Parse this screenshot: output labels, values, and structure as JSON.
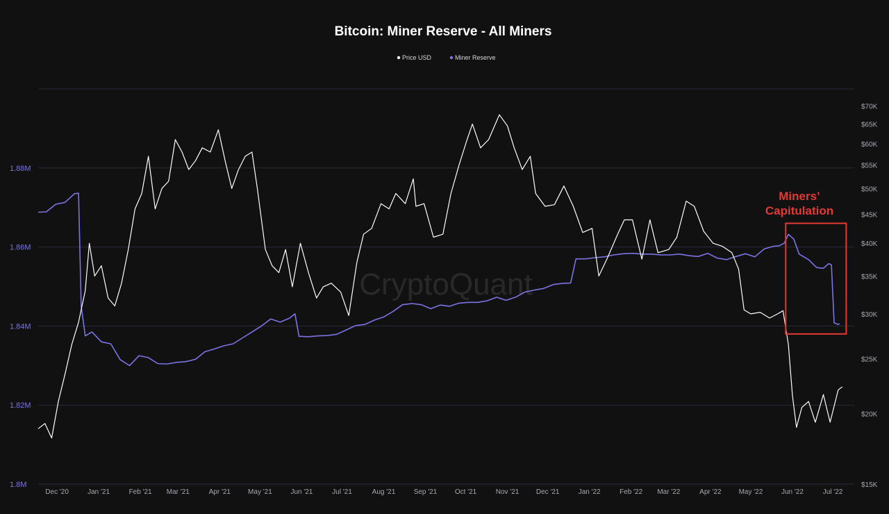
{
  "chart_data": {
    "type": "line",
    "title": "Bitcoin: Miner Reserve - All Miners",
    "watermark": "CryptoQuant",
    "legend": {
      "placement": "top-center",
      "items": [
        {
          "label": "Price USD",
          "color": "#ffffff"
        },
        {
          "label": "Miner Reserve",
          "color": "#7c74e6"
        }
      ]
    },
    "grid": true,
    "x_axis": {
      "type": "date",
      "range": [
        "2020-12-01",
        "2022-07-31"
      ],
      "ticks": [
        {
          "label": "Dec '20",
          "date": "2020-12-15"
        },
        {
          "label": "Jan '21",
          "date": "2021-01-15"
        },
        {
          "label": "Feb '21",
          "date": "2021-02-15"
        },
        {
          "label": "Mar '21",
          "date": "2021-03-15"
        },
        {
          "label": "Apr '21",
          "date": "2021-04-15"
        },
        {
          "label": "May '21",
          "date": "2021-05-15"
        },
        {
          "label": "Jun '21",
          "date": "2021-06-15"
        },
        {
          "label": "Jul '21",
          "date": "2021-07-15"
        },
        {
          "label": "Aug '21",
          "date": "2021-08-15"
        },
        {
          "label": "Sep '21",
          "date": "2021-09-15"
        },
        {
          "label": "Oct '21",
          "date": "2021-10-15"
        },
        {
          "label": "Nov '21",
          "date": "2021-11-15"
        },
        {
          "label": "Dec '21",
          "date": "2021-12-15"
        },
        {
          "label": "Jan '22",
          "date": "2022-01-15"
        },
        {
          "label": "Feb '22",
          "date": "2022-02-15"
        },
        {
          "label": "Mar '22",
          "date": "2022-03-15"
        },
        {
          "label": "Apr '22",
          "date": "2022-04-15"
        },
        {
          "label": "May '22",
          "date": "2022-05-15"
        },
        {
          "label": "Jun '22",
          "date": "2022-06-15"
        },
        {
          "label": "Jul '22",
          "date": "2022-07-15"
        }
      ]
    },
    "y_left": {
      "series": "Miner Reserve",
      "range": [
        1800000,
        1900000
      ],
      "ticks": [
        {
          "value": 1800000,
          "label": "1.8M"
        },
        {
          "value": 1820000,
          "label": "1.82M"
        },
        {
          "value": 1840000,
          "label": "1.84M"
        },
        {
          "value": 1860000,
          "label": "1.86M"
        },
        {
          "value": 1880000,
          "label": "1.88M"
        }
      ]
    },
    "y_right": {
      "series": "Price USD",
      "scale": "log",
      "range": [
        15000,
        75000
      ],
      "ticks": [
        {
          "value": 15000,
          "label": "$15K"
        },
        {
          "value": 20000,
          "label": "$20K"
        },
        {
          "value": 25000,
          "label": "$25K"
        },
        {
          "value": 30000,
          "label": "$30K"
        },
        {
          "value": 35000,
          "label": "$35K"
        },
        {
          "value": 40000,
          "label": "$40K"
        },
        {
          "value": 45000,
          "label": "$45K"
        },
        {
          "value": 50000,
          "label": "$50K"
        },
        {
          "value": 55000,
          "label": "$55K"
        },
        {
          "value": 60000,
          "label": "$60K"
        },
        {
          "value": 65000,
          "label": "$65K"
        },
        {
          "value": 70000,
          "label": "$70K"
        }
      ]
    },
    "series": [
      {
        "name": "Price USD",
        "color": "#ffffff",
        "axis": "right",
        "points": [
          [
            "2020-12-01",
            18800
          ],
          [
            "2020-12-06",
            19200
          ],
          [
            "2020-12-11",
            18100
          ],
          [
            "2020-12-16",
            21000
          ],
          [
            "2020-12-21",
            23500
          ],
          [
            "2020-12-26",
            26500
          ],
          [
            "2020-12-31",
            29000
          ],
          [
            "2021-01-05",
            33000
          ],
          [
            "2021-01-08",
            40000
          ],
          [
            "2021-01-12",
            35000
          ],
          [
            "2021-01-17",
            36500
          ],
          [
            "2021-01-22",
            32000
          ],
          [
            "2021-01-27",
            31000
          ],
          [
            "2021-02-01",
            34000
          ],
          [
            "2021-02-06",
            39000
          ],
          [
            "2021-02-11",
            46000
          ],
          [
            "2021-02-16",
            49000
          ],
          [
            "2021-02-21",
            57000
          ],
          [
            "2021-02-26",
            46000
          ],
          [
            "2021-03-03",
            50000
          ],
          [
            "2021-03-08",
            51500
          ],
          [
            "2021-03-13",
            61000
          ],
          [
            "2021-03-18",
            58000
          ],
          [
            "2021-03-23",
            54000
          ],
          [
            "2021-03-28",
            56000
          ],
          [
            "2021-04-02",
            59000
          ],
          [
            "2021-04-08",
            58000
          ],
          [
            "2021-04-14",
            63500
          ],
          [
            "2021-04-19",
            56000
          ],
          [
            "2021-04-24",
            50000
          ],
          [
            "2021-04-29",
            54000
          ],
          [
            "2021-05-04",
            57000
          ],
          [
            "2021-05-09",
            58000
          ],
          [
            "2021-05-13",
            50000
          ],
          [
            "2021-05-19",
            39000
          ],
          [
            "2021-05-24",
            36500
          ],
          [
            "2021-05-29",
            35500
          ],
          [
            "2021-06-03",
            39000
          ],
          [
            "2021-06-08",
            33500
          ],
          [
            "2021-06-14",
            40000
          ],
          [
            "2021-06-20",
            35500
          ],
          [
            "2021-06-26",
            32000
          ],
          [
            "2021-07-01",
            33500
          ],
          [
            "2021-07-07",
            34000
          ],
          [
            "2021-07-14",
            32800
          ],
          [
            "2021-07-20",
            29800
          ],
          [
            "2021-07-26",
            37000
          ],
          [
            "2021-07-31",
            41500
          ],
          [
            "2021-08-06",
            42500
          ],
          [
            "2021-08-13",
            47000
          ],
          [
            "2021-08-19",
            46000
          ],
          [
            "2021-08-24",
            49000
          ],
          [
            "2021-08-31",
            47000
          ],
          [
            "2021-09-06",
            52000
          ],
          [
            "2021-09-08",
            46500
          ],
          [
            "2021-09-14",
            47000
          ],
          [
            "2021-09-21",
            41000
          ],
          [
            "2021-09-28",
            41500
          ],
          [
            "2021-10-04",
            49000
          ],
          [
            "2021-10-10",
            55000
          ],
          [
            "2021-10-16",
            61000
          ],
          [
            "2021-10-20",
            65000
          ],
          [
            "2021-10-26",
            59000
          ],
          [
            "2021-11-01",
            61000
          ],
          [
            "2021-11-09",
            67500
          ],
          [
            "2021-11-15",
            64500
          ],
          [
            "2021-11-20",
            59000
          ],
          [
            "2021-11-26",
            54000
          ],
          [
            "2021-12-02",
            57000
          ],
          [
            "2021-12-06",
            49000
          ],
          [
            "2021-12-13",
            46500
          ],
          [
            "2021-12-20",
            46800
          ],
          [
            "2021-12-27",
            50500
          ],
          [
            "2022-01-03",
            46500
          ],
          [
            "2022-01-10",
            41800
          ],
          [
            "2022-01-17",
            42500
          ],
          [
            "2022-01-22",
            35000
          ],
          [
            "2022-01-28",
            37500
          ],
          [
            "2022-02-05",
            41500
          ],
          [
            "2022-02-10",
            44000
          ],
          [
            "2022-02-16",
            44000
          ],
          [
            "2022-02-23",
            37500
          ],
          [
            "2022-03-01",
            44000
          ],
          [
            "2022-03-07",
            38500
          ],
          [
            "2022-03-15",
            39000
          ],
          [
            "2022-03-21",
            41000
          ],
          [
            "2022-03-28",
            47500
          ],
          [
            "2022-04-03",
            46500
          ],
          [
            "2022-04-10",
            42000
          ],
          [
            "2022-04-17",
            40000
          ],
          [
            "2022-04-24",
            39500
          ],
          [
            "2022-05-01",
            38500
          ],
          [
            "2022-05-06",
            36000
          ],
          [
            "2022-05-10",
            30500
          ],
          [
            "2022-05-15",
            30000
          ],
          [
            "2022-05-22",
            30200
          ],
          [
            "2022-05-29",
            29500
          ],
          [
            "2022-06-04",
            30000
          ],
          [
            "2022-06-08",
            30400
          ],
          [
            "2022-06-12",
            26500
          ],
          [
            "2022-06-15",
            21500
          ],
          [
            "2022-06-18",
            18900
          ],
          [
            "2022-06-22",
            20500
          ],
          [
            "2022-06-27",
            21000
          ],
          [
            "2022-07-02",
            19300
          ],
          [
            "2022-07-08",
            21600
          ],
          [
            "2022-07-13",
            19300
          ],
          [
            "2022-07-19",
            22000
          ],
          [
            "2022-07-22",
            22300
          ]
        ]
      },
      {
        "name": "Miner Reserve",
        "color": "#7c74e6",
        "axis": "left",
        "points": [
          [
            "2020-12-01",
            1868800
          ],
          [
            "2020-12-07",
            1868900
          ],
          [
            "2020-12-14",
            1870800
          ],
          [
            "2020-12-21",
            1871300
          ],
          [
            "2020-12-28",
            1873500
          ],
          [
            "2020-12-31",
            1873600
          ],
          [
            "2021-01-02",
            1845000
          ],
          [
            "2021-01-05",
            1837500
          ],
          [
            "2021-01-10",
            1838500
          ],
          [
            "2021-01-17",
            1836000
          ],
          [
            "2021-01-24",
            1835500
          ],
          [
            "2021-01-31",
            1831500
          ],
          [
            "2021-02-07",
            1830000
          ],
          [
            "2021-02-14",
            1832500
          ],
          [
            "2021-02-21",
            1832000
          ],
          [
            "2021-02-28",
            1830500
          ],
          [
            "2021-03-07",
            1830400
          ],
          [
            "2021-03-14",
            1830800
          ],
          [
            "2021-03-21",
            1831000
          ],
          [
            "2021-03-28",
            1831600
          ],
          [
            "2021-04-04",
            1833500
          ],
          [
            "2021-04-11",
            1834200
          ],
          [
            "2021-04-18",
            1835000
          ],
          [
            "2021-04-25",
            1835500
          ],
          [
            "2021-05-02",
            1837000
          ],
          [
            "2021-05-09",
            1838500
          ],
          [
            "2021-05-16",
            1840000
          ],
          [
            "2021-05-23",
            1841800
          ],
          [
            "2021-05-30",
            1841000
          ],
          [
            "2021-06-06",
            1842000
          ],
          [
            "2021-06-10",
            1843100
          ],
          [
            "2021-06-13",
            1837400
          ],
          [
            "2021-06-20",
            1837300
          ],
          [
            "2021-06-27",
            1837500
          ],
          [
            "2021-07-04",
            1837600
          ],
          [
            "2021-07-11",
            1837900
          ],
          [
            "2021-07-18",
            1839000
          ],
          [
            "2021-07-25",
            1840100
          ],
          [
            "2021-08-01",
            1840400
          ],
          [
            "2021-08-08",
            1841500
          ],
          [
            "2021-08-15",
            1842300
          ],
          [
            "2021-08-22",
            1843700
          ],
          [
            "2021-08-29",
            1845400
          ],
          [
            "2021-09-05",
            1845700
          ],
          [
            "2021-09-12",
            1845400
          ],
          [
            "2021-09-19",
            1844400
          ],
          [
            "2021-09-26",
            1845300
          ],
          [
            "2021-10-03",
            1845000
          ],
          [
            "2021-10-10",
            1845800
          ],
          [
            "2021-10-17",
            1846000
          ],
          [
            "2021-10-24",
            1846000
          ],
          [
            "2021-10-31",
            1846400
          ],
          [
            "2021-11-07",
            1847300
          ],
          [
            "2021-11-14",
            1846500
          ],
          [
            "2021-11-21",
            1847300
          ],
          [
            "2021-11-28",
            1848600
          ],
          [
            "2021-12-05",
            1849100
          ],
          [
            "2021-12-12",
            1849500
          ],
          [
            "2021-12-19",
            1850500
          ],
          [
            "2021-12-26",
            1850800
          ],
          [
            "2022-01-01",
            1850900
          ],
          [
            "2022-01-05",
            1857000
          ],
          [
            "2022-01-12",
            1857000
          ],
          [
            "2022-01-19",
            1857300
          ],
          [
            "2022-01-26",
            1857500
          ],
          [
            "2022-02-02",
            1858000
          ],
          [
            "2022-02-09",
            1858300
          ],
          [
            "2022-02-16",
            1858400
          ],
          [
            "2022-02-23",
            1858200
          ],
          [
            "2022-03-02",
            1858200
          ],
          [
            "2022-03-09",
            1858000
          ],
          [
            "2022-03-16",
            1858000
          ],
          [
            "2022-03-23",
            1858200
          ],
          [
            "2022-03-30",
            1857800
          ],
          [
            "2022-04-06",
            1857600
          ],
          [
            "2022-04-13",
            1858400
          ],
          [
            "2022-04-20",
            1857200
          ],
          [
            "2022-04-27",
            1856800
          ],
          [
            "2022-05-04",
            1857600
          ],
          [
            "2022-05-11",
            1858300
          ],
          [
            "2022-05-18",
            1857500
          ],
          [
            "2022-05-25",
            1859500
          ],
          [
            "2022-06-01",
            1860200
          ],
          [
            "2022-06-05",
            1860300
          ],
          [
            "2022-06-09",
            1861000
          ],
          [
            "2022-06-12",
            1863200
          ],
          [
            "2022-06-16",
            1862000
          ],
          [
            "2022-06-20",
            1858200
          ],
          [
            "2022-06-27",
            1856800
          ],
          [
            "2022-07-03",
            1854800
          ],
          [
            "2022-07-08",
            1854600
          ],
          [
            "2022-07-12",
            1855800
          ],
          [
            "2022-07-14",
            1855500
          ],
          [
            "2022-07-16",
            1840800
          ],
          [
            "2022-07-19",
            1840400
          ],
          [
            "2022-07-20",
            1840600
          ]
        ]
      }
    ],
    "annotations": [
      {
        "type": "text",
        "lines": [
          "Miners’",
          "Capitulation"
        ],
        "color": "#e53935"
      },
      {
        "type": "rect",
        "x_range": [
          "2022-06-10",
          "2022-07-25"
        ],
        "y_range_left": [
          1838000,
          1866000
        ],
        "color": "#e53935"
      }
    ]
  }
}
